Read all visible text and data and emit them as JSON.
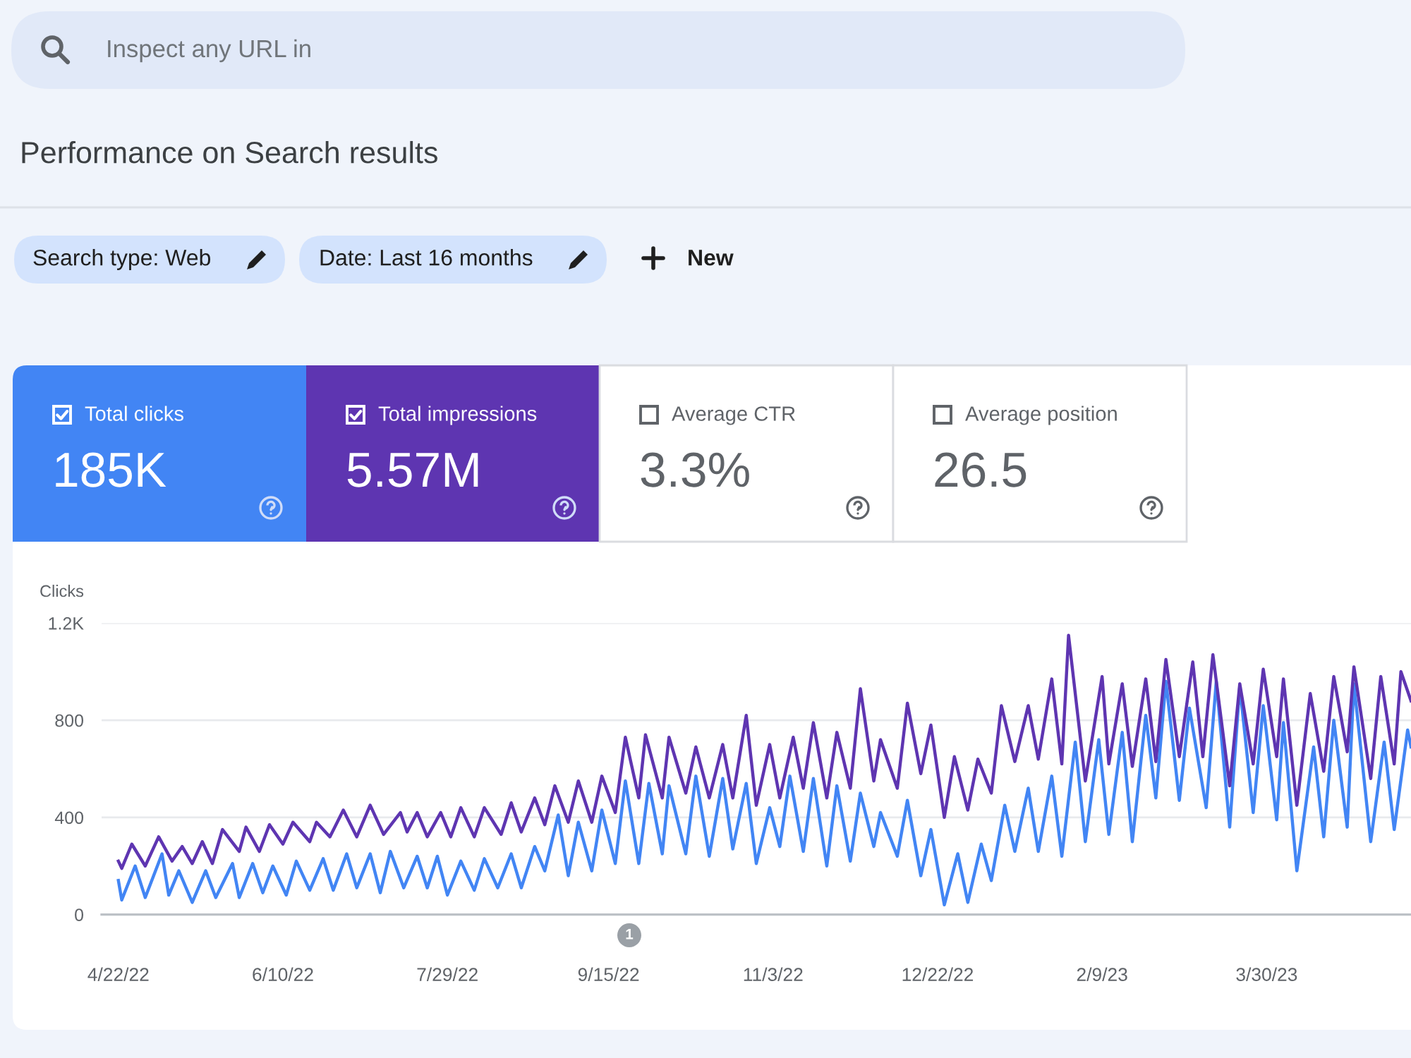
{
  "chart_data": {
    "type": "line",
    "title": "Performance on Search results",
    "ylabel": "Clicks",
    "annotations": [
      "Inspect any URL in",
      "Search type: Web",
      "Date: Last 16 months",
      "New",
      "185K",
      "5.57M",
      "Average CTR",
      "3.3%",
      "Average position",
      "26.5",
      "1"
    ],
    "legend": "top left",
    "grid": "y",
    "xlim": [
      "2022-04-17",
      "2023-05-12"
    ],
    "xticks": [
      {
        "value": "2022-04-22",
        "label": "4/22/22"
      },
      {
        "value": "2022-06-10",
        "label": "6/10/22"
      },
      {
        "value": "2022-07-29",
        "label": "7/29/22"
      },
      {
        "value": "2022-09-15",
        "label": "9/15/22"
      },
      {
        "value": "2022-11-03",
        "label": "11/3/22"
      },
      {
        "value": "2022-12-22",
        "label": "12/22/22"
      },
      {
        "value": "2023-02-09",
        "label": "2/9/23"
      },
      {
        "value": "2023-03-30",
        "label": "3/30/23"
      }
    ],
    "ylim": [
      0,
      1200
    ],
    "yticks": [
      0,
      400,
      800,
      {
        "value": 1200,
        "label": "1.2K"
      }
    ],
    "series": [
      {
        "name": "Total clicks",
        "color": "#4285f4",
        "x": [
          "2022-04-22",
          "2022-04-23",
          "2022-04-27",
          "2022-04-30",
          "2022-05-05",
          "2022-05-07",
          "2022-05-10",
          "2022-05-14",
          "2022-05-18",
          "2022-05-21",
          "2022-05-26",
          "2022-05-28",
          "2022-06-01",
          "2022-06-04",
          "2022-06-07",
          "2022-06-11",
          "2022-06-14",
          "2022-06-18",
          "2022-06-22",
          "2022-06-25",
          "2022-06-29",
          "2022-07-02",
          "2022-07-06",
          "2022-07-09",
          "2022-07-12",
          "2022-07-16",
          "2022-07-20",
          "2022-07-23",
          "2022-07-26",
          "2022-07-29",
          "2022-08-02",
          "2022-08-06",
          "2022-08-09",
          "2022-08-13",
          "2022-08-17",
          "2022-08-20",
          "2022-08-24",
          "2022-08-27",
          "2022-08-31",
          "2022-09-03",
          "2022-09-06",
          "2022-09-10",
          "2022-09-13",
          "2022-09-17",
          "2022-09-20",
          "2022-09-24",
          "2022-09-27",
          "2022-10-01",
          "2022-10-03",
          "2022-10-08",
          "2022-10-11",
          "2022-10-15",
          "2022-10-19",
          "2022-10-22",
          "2022-10-26",
          "2022-10-29",
          "2022-11-02",
          "2022-11-05",
          "2022-11-08",
          "2022-11-12",
          "2022-11-15",
          "2022-11-19",
          "2022-11-22",
          "2022-11-26",
          "2022-11-29",
          "2022-12-03",
          "2022-12-05",
          "2022-12-10",
          "2022-12-13",
          "2022-12-17",
          "2022-12-20",
          "2022-12-24",
          "2022-12-28",
          "2022-12-31",
          "2023-01-04",
          "2023-01-07",
          "2023-01-11",
          "2023-01-14",
          "2023-01-18",
          "2023-01-21",
          "2023-01-25",
          "2023-01-28",
          "2023-02-01",
          "2023-02-04",
          "2023-02-08",
          "2023-02-11",
          "2023-02-15",
          "2023-02-18",
          "2023-02-22",
          "2023-02-25",
          "2023-02-28",
          "2023-03-04",
          "2023-03-07",
          "2023-03-12",
          "2023-03-15",
          "2023-03-19",
          "2023-03-22",
          "2023-03-26",
          "2023-03-29",
          "2023-04-02",
          "2023-04-04",
          "2023-04-08",
          "2023-04-13",
          "2023-04-16",
          "2023-04-19",
          "2023-04-23",
          "2023-04-25",
          "2023-04-30",
          "2023-05-04",
          "2023-05-07",
          "2023-05-11",
          "2023-05-12"
        ],
        "values": [
          140,
          60,
          200,
          70,
          250,
          80,
          180,
          50,
          180,
          70,
          210,
          70,
          210,
          90,
          200,
          80,
          220,
          100,
          230,
          100,
          250,
          110,
          250,
          90,
          260,
          110,
          240,
          110,
          240,
          80,
          220,
          100,
          230,
          110,
          250,
          110,
          280,
          180,
          410,
          160,
          380,
          180,
          430,
          210,
          550,
          210,
          540,
          250,
          530,
          250,
          570,
          240,
          560,
          270,
          540,
          210,
          440,
          280,
          570,
          260,
          560,
          200,
          530,
          220,
          500,
          280,
          420,
          240,
          470,
          160,
          350,
          40,
          250,
          50,
          290,
          140,
          450,
          260,
          520,
          260,
          570,
          240,
          710,
          300,
          720,
          330,
          750,
          300,
          820,
          480,
          960,
          470,
          850,
          440,
          960,
          360,
          940,
          420,
          860,
          390,
          790,
          180,
          690,
          320,
          800,
          360,
          950,
          300,
          710,
          350,
          760,
          690
        ]
      },
      {
        "name": "Total impressions",
        "color": "#5e35b1",
        "x": [
          "2022-04-22",
          "2022-04-23",
          "2022-04-26",
          "2022-04-30",
          "2022-05-04",
          "2022-05-08",
          "2022-05-11",
          "2022-05-14",
          "2022-05-17",
          "2022-05-20",
          "2022-05-23",
          "2022-05-28",
          "2022-05-30",
          "2022-06-03",
          "2022-06-06",
          "2022-06-10",
          "2022-06-13",
          "2022-06-18",
          "2022-06-20",
          "2022-06-24",
          "2022-06-28",
          "2022-07-02",
          "2022-07-06",
          "2022-07-10",
          "2022-07-15",
          "2022-07-17",
          "2022-07-20",
          "2022-07-23",
          "2022-07-27",
          "2022-07-30",
          "2022-08-02",
          "2022-08-06",
          "2022-08-09",
          "2022-08-14",
          "2022-08-17",
          "2022-08-20",
          "2022-08-24",
          "2022-08-27",
          "2022-08-30",
          "2022-09-03",
          "2022-09-06",
          "2022-09-10",
          "2022-09-13",
          "2022-09-17",
          "2022-09-20",
          "2022-09-24",
          "2022-09-26",
          "2022-10-01",
          "2022-10-03",
          "2022-10-08",
          "2022-10-11",
          "2022-10-15",
          "2022-10-19",
          "2022-10-22",
          "2022-10-26",
          "2022-10-29",
          "2022-11-02",
          "2022-11-05",
          "2022-11-09",
          "2022-11-12",
          "2022-11-15",
          "2022-11-19",
          "2022-11-22",
          "2022-11-26",
          "2022-11-29",
          "2022-12-03",
          "2022-12-05",
          "2022-12-10",
          "2022-12-13",
          "2022-12-17",
          "2022-12-20",
          "2022-12-24",
          "2022-12-27",
          "2022-12-31",
          "2023-01-03",
          "2023-01-07",
          "2023-01-10",
          "2023-01-14",
          "2023-01-18",
          "2023-01-21",
          "2023-01-25",
          "2023-01-28",
          "2023-01-30",
          "2023-02-04",
          "2023-02-09",
          "2023-02-11",
          "2023-02-15",
          "2023-02-18",
          "2023-02-22",
          "2023-02-25",
          "2023-02-28",
          "2023-03-04",
          "2023-03-08",
          "2023-03-11",
          "2023-03-14",
          "2023-03-19",
          "2023-03-22",
          "2023-03-26",
          "2023-03-29",
          "2023-04-02",
          "2023-04-04",
          "2023-04-08",
          "2023-04-12",
          "2023-04-16",
          "2023-04-19",
          "2023-04-23",
          "2023-04-25",
          "2023-04-30",
          "2023-05-03",
          "2023-05-07",
          "2023-05-09",
          "2023-05-12"
        ],
        "values": [
          220,
          190,
          290,
          200,
          320,
          220,
          280,
          210,
          300,
          210,
          350,
          260,
          360,
          260,
          370,
          290,
          380,
          300,
          380,
          320,
          430,
          320,
          450,
          330,
          420,
          340,
          420,
          320,
          420,
          320,
          440,
          320,
          440,
          330,
          460,
          340,
          480,
          370,
          530,
          380,
          550,
          380,
          570,
          420,
          730,
          480,
          740,
          480,
          730,
          500,
          690,
          480,
          700,
          480,
          820,
          450,
          700,
          480,
          730,
          520,
          790,
          480,
          750,
          520,
          930,
          550,
          720,
          520,
          870,
          580,
          780,
          400,
          650,
          430,
          640,
          500,
          860,
          630,
          860,
          640,
          970,
          620,
          1150,
          550,
          980,
          620,
          950,
          610,
          970,
          630,
          1050,
          650,
          1040,
          650,
          1070,
          530,
          950,
          620,
          1010,
          650,
          970,
          450,
          910,
          590,
          980,
          670,
          1020,
          560,
          980,
          620,
          1000,
          880
        ]
      }
    ]
  }
}
